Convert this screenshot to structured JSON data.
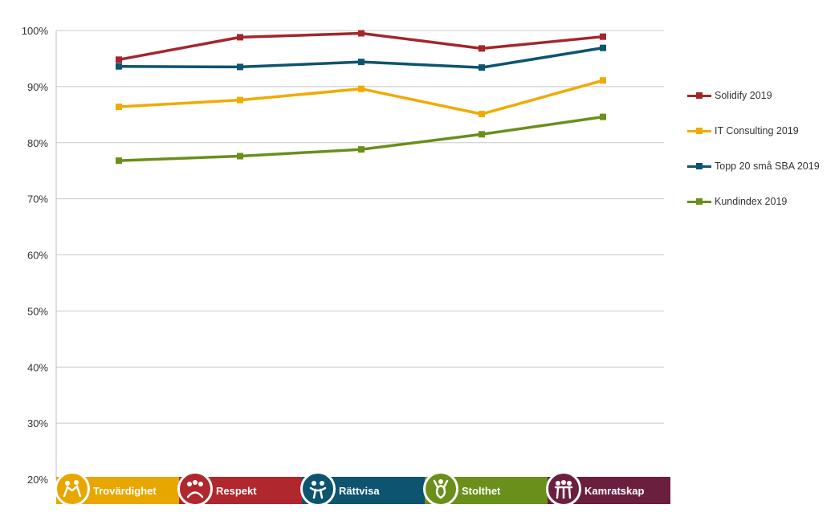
{
  "chart_data": {
    "type": "line",
    "categories": [
      "",
      "",
      "",
      "",
      ""
    ],
    "ylim": [
      20,
      100
    ],
    "y_ticks": [
      "20%",
      "30%",
      "40%",
      "50%",
      "60%",
      "70%",
      "80%",
      "90%",
      "100%"
    ],
    "grid": true,
    "legend_position": "right",
    "series": [
      {
        "name": "Solidify 2019",
        "color": "#a4262c",
        "values": [
          94.8,
          98.8,
          99.5,
          96.8,
          98.9
        ]
      },
      {
        "name": "IT Consulting 2019",
        "color": "#f0ab00",
        "values": [
          86.4,
          87.6,
          89.6,
          85.1,
          91.1
        ]
      },
      {
        "name": "Topp 20 små SBA 2019",
        "color": "#0d5470",
        "values": [
          93.6,
          93.5,
          94.4,
          93.4,
          96.9
        ]
      },
      {
        "name": "Kundindex 2019",
        "color": "#6a8f1a",
        "values": [
          76.8,
          77.6,
          78.8,
          81.5,
          84.6
        ]
      }
    ]
  },
  "banner": [
    {
      "label": "Trovärdighet",
      "color": "#e8a700",
      "icon": "handshake-people-icon"
    },
    {
      "label": "Respekt",
      "color": "#b0272d",
      "icon": "bowing-people-icon"
    },
    {
      "label": "Rättvisa",
      "color": "#0d5470",
      "icon": "fair-play-people-icon"
    },
    {
      "label": "Stolthet",
      "color": "#6a8f1a",
      "icon": "proud-person-icon"
    },
    {
      "label": "Kamratskap",
      "color": "#6b1f3f",
      "icon": "team-people-icon"
    }
  ]
}
